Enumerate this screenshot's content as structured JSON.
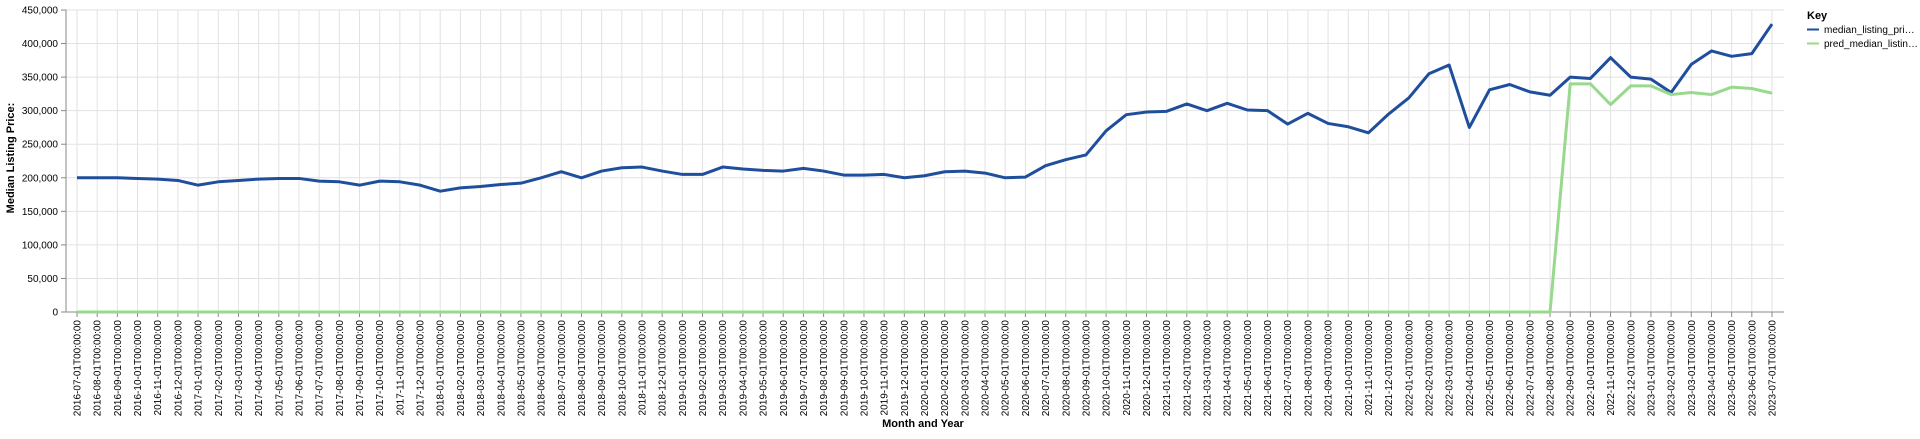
{
  "chart_data": {
    "type": "line",
    "xlabel": "Month and Year",
    "ylabel": "Median Listing Price:",
    "ylim": [
      0,
      450000
    ],
    "y_ticks": [
      "0",
      "50,000",
      "100,000",
      "150,000",
      "200,000",
      "250,000",
      "300,000",
      "350,000",
      "400,000",
      "450,000"
    ],
    "y_tick_values": [
      0,
      50000,
      100000,
      150000,
      200000,
      250000,
      300000,
      350000,
      400000,
      450000
    ],
    "grid": true,
    "legend": {
      "title": "Key",
      "placement": "right",
      "entries": [
        "median_listing_pri…",
        "pred_median_listin…"
      ]
    },
    "x": [
      "2016-07-01T00:00:00",
      "2016-08-01T00:00:00",
      "2016-09-01T00:00:00",
      "2016-10-01T00:00:00",
      "2016-11-01T00:00:00",
      "2016-12-01T00:00:00",
      "2017-01-01T00:00:00",
      "2017-02-01T00:00:00",
      "2017-03-01T00:00:00",
      "2017-04-01T00:00:00",
      "2017-05-01T00:00:00",
      "2017-06-01T00:00:00",
      "2017-07-01T00:00:00",
      "2017-08-01T00:00:00",
      "2017-09-01T00:00:00",
      "2017-10-01T00:00:00",
      "2017-11-01T00:00:00",
      "2017-12-01T00:00:00",
      "2018-01-01T00:00:00",
      "2018-02-01T00:00:00",
      "2018-03-01T00:00:00",
      "2018-04-01T00:00:00",
      "2018-05-01T00:00:00",
      "2018-06-01T00:00:00",
      "2018-07-01T00:00:00",
      "2018-08-01T00:00:00",
      "2018-09-01T00:00:00",
      "2018-10-01T00:00:00",
      "2018-11-01T00:00:00",
      "2018-12-01T00:00:00",
      "2019-01-01T00:00:00",
      "2019-02-01T00:00:00",
      "2019-03-01T00:00:00",
      "2019-04-01T00:00:00",
      "2019-05-01T00:00:00",
      "2019-06-01T00:00:00",
      "2019-07-01T00:00:00",
      "2019-08-01T00:00:00",
      "2019-09-01T00:00:00",
      "2019-10-01T00:00:00",
      "2019-11-01T00:00:00",
      "2019-12-01T00:00:00",
      "2020-01-01T00:00:00",
      "2020-02-01T00:00:00",
      "2020-03-01T00:00:00",
      "2020-04-01T00:00:00",
      "2020-05-01T00:00:00",
      "2020-06-01T00:00:00",
      "2020-07-01T00:00:00",
      "2020-08-01T00:00:00",
      "2020-09-01T00:00:00",
      "2020-10-01T00:00:00",
      "2020-11-01T00:00:00",
      "2020-12-01T00:00:00",
      "2021-01-01T00:00:00",
      "2021-02-01T00:00:00",
      "2021-03-01T00:00:00",
      "2021-04-01T00:00:00",
      "2021-05-01T00:00:00",
      "2021-06-01T00:00:00",
      "2021-07-01T00:00:00",
      "2021-08-01T00:00:00",
      "2021-09-01T00:00:00",
      "2021-10-01T00:00:00",
      "2021-11-01T00:00:00",
      "2021-12-01T00:00:00",
      "2022-01-01T00:00:00",
      "2022-02-01T00:00:00",
      "2022-03-01T00:00:00",
      "2022-04-01T00:00:00",
      "2022-05-01T00:00:00",
      "2022-06-01T00:00:00",
      "2022-07-01T00:00:00",
      "2022-08-01T00:00:00",
      "2022-09-01T00:00:00",
      "2022-10-01T00:00:00",
      "2022-11-01T00:00:00",
      "2022-12-01T00:00:00",
      "2023-01-01T00:00:00",
      "2023-02-01T00:00:00",
      "2023-03-01T00:00:00",
      "2023-04-01T00:00:00",
      "2023-05-01T00:00:00",
      "2023-06-01T00:00:00",
      "2023-07-01T00:00:00"
    ],
    "series": [
      {
        "name": "median_listing_pri…",
        "color": "#1f4e9c",
        "values": [
          200000,
          200000,
          200000,
          199000,
          198000,
          196000,
          189000,
          194000,
          196000,
          198000,
          199000,
          199000,
          195000,
          194000,
          189000,
          195000,
          194000,
          189000,
          180000,
          185000,
          187000,
          190000,
          192000,
          200000,
          209000,
          200000,
          210000,
          215000,
          216000,
          210000,
          205000,
          205000,
          216000,
          213000,
          211000,
          210000,
          214000,
          210000,
          204000,
          204000,
          205000,
          200000,
          203000,
          209000,
          210000,
          207000,
          200000,
          201000,
          218000,
          227000,
          234000,
          270000,
          294000,
          298000,
          299000,
          310000,
          300000,
          311000,
          301000,
          300000,
          280000,
          296000,
          281000,
          276000,
          267000,
          295000,
          319000,
          355000,
          368000,
          275000,
          331000,
          339000,
          328000,
          323000,
          350000,
          348000,
          379000,
          350000,
          347000,
          327000,
          369000,
          389000,
          381000,
          385000,
          429000
        ]
      },
      {
        "name": "pred_median_listin…",
        "color": "#98d98e",
        "values": [
          0,
          0,
          0,
          0,
          0,
          0,
          0,
          0,
          0,
          0,
          0,
          0,
          0,
          0,
          0,
          0,
          0,
          0,
          0,
          0,
          0,
          0,
          0,
          0,
          0,
          0,
          0,
          0,
          0,
          0,
          0,
          0,
          0,
          0,
          0,
          0,
          0,
          0,
          0,
          0,
          0,
          0,
          0,
          0,
          0,
          0,
          0,
          0,
          0,
          0,
          0,
          0,
          0,
          0,
          0,
          0,
          0,
          0,
          0,
          0,
          0,
          0,
          0,
          0,
          0,
          0,
          0,
          0,
          0,
          0,
          0,
          0,
          0,
          0,
          340000,
          340000,
          309000,
          337000,
          337000,
          324000,
          327000,
          324000,
          335000,
          333000,
          326000
        ]
      }
    ]
  }
}
